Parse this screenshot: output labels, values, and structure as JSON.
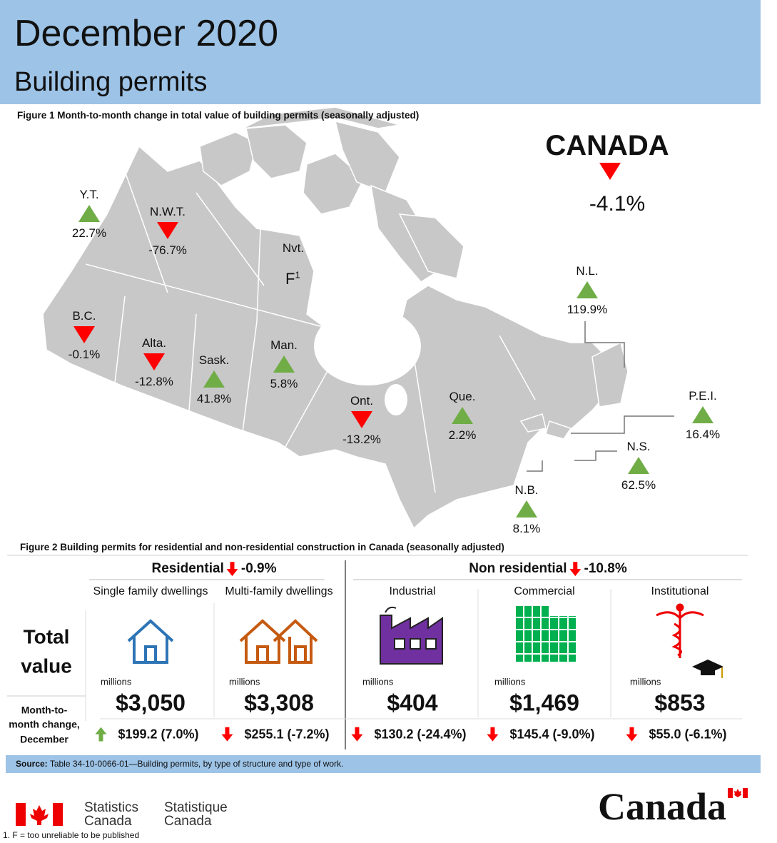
{
  "header": {
    "title": "December 2020",
    "subtitle": "Building permits"
  },
  "figure1": {
    "title": "Figure 1  Month-to-month change in total value of building permits (seasonally adjusted)",
    "canada": {
      "name": "CANADA",
      "change": "-4.1%"
    },
    "regions": [
      {
        "name": "Y.T.",
        "change": "22.7%"
      },
      {
        "name": "N.W.T.",
        "change": "-76.7%"
      },
      {
        "name": "B.C.",
        "change": "-0.1%"
      },
      {
        "name": "Alta.",
        "change": "-12.8%"
      },
      {
        "name": "Sask.",
        "change": "41.8%"
      },
      {
        "name": "Man.",
        "change": "5.8%"
      },
      {
        "name": "Ont.",
        "change": "-13.2%"
      },
      {
        "name": "Que.",
        "change": "2.2%"
      },
      {
        "name": "N.L.",
        "change": "119.9%"
      },
      {
        "name": "P.E.I.",
        "change": "16.4%"
      },
      {
        "name": "N.S.",
        "change": "62.5%"
      },
      {
        "name": "N.B.",
        "change": "8.1%"
      }
    ],
    "nunavut": {
      "name": "Nvt.",
      "change": "F",
      "note": "1"
    }
  },
  "figure2": {
    "title": "Figure 2  Building permits for residential and non-residential construction in Canada (seasonally adjusted)",
    "row_labels": {
      "total": "Total value",
      "change": "Month-to-month change, December"
    },
    "groups": [
      {
        "name": "Residential",
        "change": "-0.9%",
        "items": [
          {
            "name": "Single family dwellings",
            "unit": "millions",
            "value": "$3,050",
            "change": "$199.2 (7.0%)"
          },
          {
            "name": "Multi-family dwellings",
            "unit": "millions",
            "value": "$3,308",
            "change": "$255.1 (-7.2%)"
          }
        ]
      },
      {
        "name": "Non residential",
        "change": "-10.8%",
        "items": [
          {
            "name": "Industrial",
            "unit": "millions",
            "value": "$404",
            "change": "$130.2 (-24.4%)"
          },
          {
            "name": "Commercial",
            "unit": "millions",
            "value": "$1,469",
            "change": "$145.4 (-9.0%)"
          },
          {
            "name": "Institutional",
            "unit": "millions",
            "value": "$853",
            "change": "$55.0 (-6.1%)"
          }
        ]
      }
    ]
  },
  "source": {
    "label": "Source:",
    "text": "Table 34-10-0066-01—Building permits, by type of structure and type of work."
  },
  "footer": {
    "statcan_en": [
      "Statistics",
      "Canada"
    ],
    "statcan_fr": [
      "Statistique",
      "Canada"
    ],
    "wordmark": "Canada",
    "footnote": "1. F = too unreliable to be published"
  }
}
